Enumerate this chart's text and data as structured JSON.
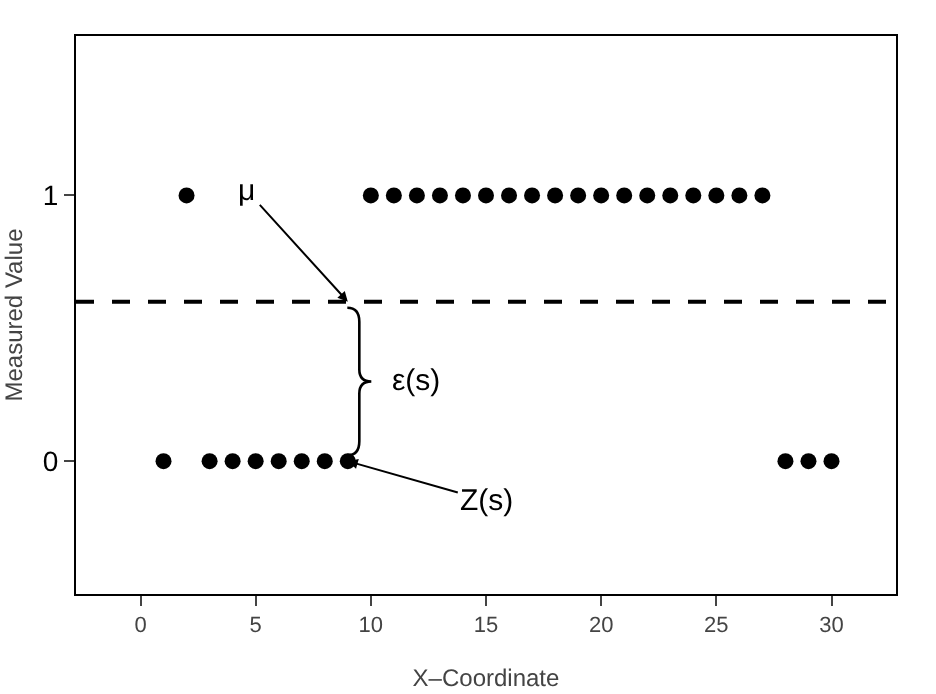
{
  "chart_data": {
    "type": "scatter",
    "xlabel": "X–Coordinate",
    "ylabel": "Measured Value",
    "x": [
      1,
      2,
      3,
      4,
      5,
      6,
      7,
      8,
      9,
      10,
      11,
      12,
      13,
      14,
      15,
      16,
      17,
      18,
      19,
      20,
      21,
      22,
      23,
      24,
      25,
      26,
      27,
      28,
      29,
      30
    ],
    "series": [
      {
        "color": "#000000",
        "values": [
          0,
          1,
          0,
          0,
          0,
          0,
          0,
          0,
          0,
          1,
          1,
          1,
          1,
          1,
          1,
          1,
          1,
          1,
          1,
          1,
          1,
          1,
          1,
          1,
          1,
          1,
          1,
          0,
          0,
          0
        ]
      }
    ],
    "xlim": [
      -2.8,
      32.8
    ],
    "xticks": [
      0,
      5,
      10,
      15,
      20,
      25,
      30
    ],
    "ylim": [
      -0.5,
      1.6
    ],
    "yticks": [
      0,
      1
    ],
    "ref_lines": [
      {
        "axis": "y",
        "value": 0.6,
        "color": "#000000",
        "line_style": "dashed"
      }
    ],
    "annotations": [
      {
        "text": "μ",
        "x": 9,
        "y": 0.6
      },
      "ε(s)",
      {
        "text": "Z(s)",
        "x": 9,
        "y": 0
      }
    ],
    "marker": "circle",
    "grid": false
  }
}
